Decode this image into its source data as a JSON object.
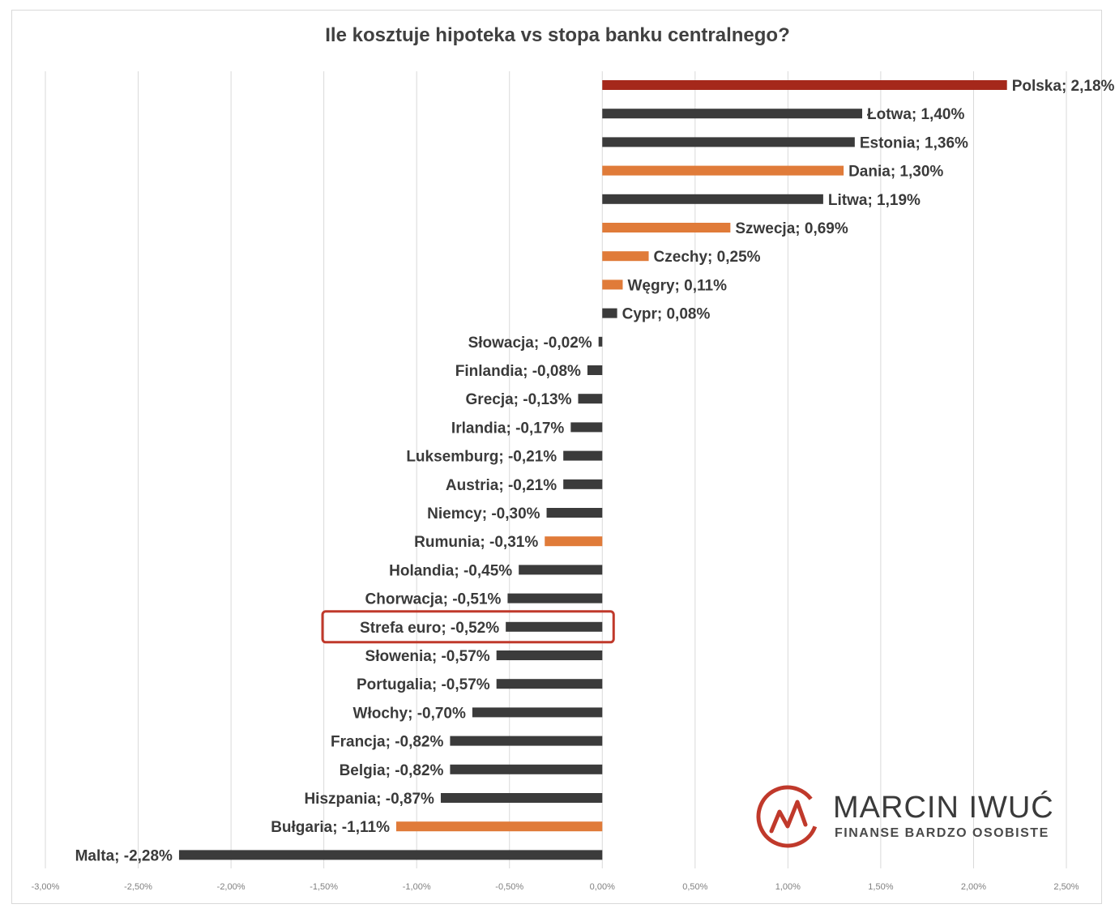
{
  "chart_data": {
    "type": "bar",
    "orientation": "horizontal",
    "title": "Ile kosztuje hipoteka vs stopa banku centralnego?",
    "xlim": [
      -0.03,
      0.025
    ],
    "x_ticks": [
      "-3,00%",
      "-2,50%",
      "-2,00%",
      "-1,50%",
      "-1,00%",
      "-0,50%",
      "0,00%",
      "0,50%",
      "1,00%",
      "1,50%",
      "2,00%",
      "2,50%"
    ],
    "grid": true,
    "colors": {
      "default": "#3b3b3b",
      "orange": "#e07b39",
      "highlight": "#a5281b",
      "box": "#c0392b"
    },
    "categories": [
      "Polska",
      "Łotwa",
      "Estonia",
      "Dania",
      "Litwa",
      "Szwecja",
      "Czechy",
      "Węgry",
      "Cypr",
      "Słowacja",
      "Finlandia",
      "Grecja",
      "Irlandia",
      "Luksemburg",
      "Austria",
      "Niemcy",
      "Rumunia",
      "Holandia",
      "Chorwacja",
      "Strefa euro",
      "Słowenia",
      "Portugalia",
      "Włochy",
      "Francja",
      "Belgia",
      "Hiszpania",
      "Bułgaria",
      "Malta"
    ],
    "values": [
      0.0218,
      0.014,
      0.0136,
      0.013,
      0.0119,
      0.0069,
      0.0025,
      0.0011,
      0.0008,
      -0.0002,
      -0.0008,
      -0.0013,
      -0.0017,
      -0.0021,
      -0.0021,
      -0.003,
      -0.0031,
      -0.0045,
      -0.0051,
      -0.0052,
      -0.0057,
      -0.0057,
      -0.007,
      -0.0082,
      -0.0082,
      -0.0087,
      -0.0111,
      -0.0228
    ],
    "data_labels": [
      "Polska; 2,18%",
      "Łotwa; 1,40%",
      "Estonia; 1,36%",
      "Dania; 1,30%",
      "Litwa; 1,19%",
      "Szwecja; 0,69%",
      "Czechy; 0,25%",
      "Węgry; 0,11%",
      "Cypr; 0,08%",
      "Słowacja; -0,02%",
      "Finlandia; -0,08%",
      "Grecja; -0,13%",
      "Irlandia; -0,17%",
      "Luksemburg; -0,21%",
      "Austria; -0,21%",
      "Niemcy; -0,30%",
      "Rumunia; -0,31%",
      "Holandia; -0,45%",
      "Chorwacja; -0,51%",
      "Strefa euro; -0,52%",
      "Słowenia; -0,57%",
      "Portugalia; -0,57%",
      "Włochy; -0,70%",
      "Francja; -0,82%",
      "Belgia; -0,82%",
      "Hiszpania; -0,87%",
      "Bułgaria; -1,11%",
      "Malta; -2,28%"
    ],
    "bar_colors": [
      "highlight",
      "default",
      "default",
      "orange",
      "default",
      "orange",
      "orange",
      "orange",
      "default",
      "default",
      "default",
      "default",
      "default",
      "default",
      "default",
      "default",
      "orange",
      "default",
      "default",
      "default",
      "default",
      "default",
      "default",
      "default",
      "default",
      "default",
      "orange",
      "default"
    ],
    "highlighted_category": "Strefa euro"
  },
  "watermark": {
    "name": "MARCIN IWUĆ",
    "tagline": "FINANSE BARDZO OSOBISTE",
    "color": "#c0392b"
  }
}
